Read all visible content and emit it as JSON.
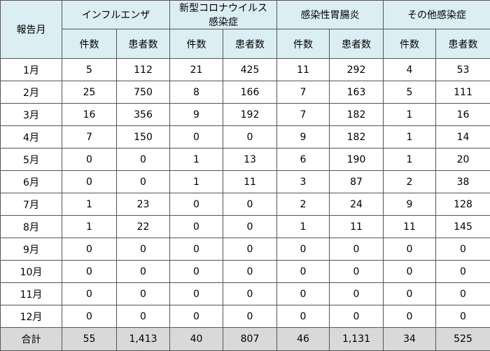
{
  "table": {
    "month_label": "報告月",
    "groups": [
      {
        "lines": [
          "インフルエンザ"
        ],
        "columns": [
          "件数",
          "患者数"
        ]
      },
      {
        "lines": [
          "新型コロナウイルス",
          "感染症"
        ],
        "columns": [
          "件数",
          "患者数"
        ]
      },
      {
        "lines": [
          "感染性胃腸炎"
        ],
        "columns": [
          "件数",
          "患者数"
        ]
      },
      {
        "lines": [
          "その他感染症"
        ],
        "columns": [
          "件数",
          "患者数"
        ]
      }
    ],
    "rows": [
      {
        "month": "1月",
        "cells": [
          "5",
          "112",
          "21",
          "425",
          "11",
          "292",
          "4",
          "53"
        ]
      },
      {
        "month": "2月",
        "cells": [
          "25",
          "750",
          "8",
          "166",
          "7",
          "163",
          "5",
          "111"
        ]
      },
      {
        "month": "3月",
        "cells": [
          "16",
          "356",
          "9",
          "192",
          "7",
          "182",
          "1",
          "16"
        ]
      },
      {
        "month": "4月",
        "cells": [
          "7",
          "150",
          "0",
          "0",
          "9",
          "182",
          "1",
          "14"
        ]
      },
      {
        "month": "5月",
        "cells": [
          "0",
          "0",
          "1",
          "13",
          "6",
          "190",
          "1",
          "20"
        ]
      },
      {
        "month": "6月",
        "cells": [
          "0",
          "0",
          "1",
          "11",
          "3",
          "87",
          "2",
          "38"
        ]
      },
      {
        "month": "7月",
        "cells": [
          "1",
          "23",
          "0",
          "0",
          "2",
          "24",
          "9",
          "128"
        ]
      },
      {
        "month": "8月",
        "cells": [
          "1",
          "22",
          "0",
          "0",
          "1",
          "11",
          "11",
          "145"
        ]
      },
      {
        "month": "9月",
        "cells": [
          "0",
          "0",
          "0",
          "0",
          "0",
          "0",
          "0",
          "0"
        ]
      },
      {
        "month": "10月",
        "cells": [
          "0",
          "0",
          "0",
          "0",
          "0",
          "0",
          "0",
          "0"
        ]
      },
      {
        "month": "11月",
        "cells": [
          "0",
          "0",
          "0",
          "0",
          "0",
          "0",
          "0",
          "0"
        ]
      },
      {
        "month": "12月",
        "cells": [
          "0",
          "0",
          "0",
          "0",
          "0",
          "0",
          "0",
          "0"
        ]
      }
    ],
    "total": {
      "label": "合計",
      "cells": [
        "55",
        "1,413",
        "40",
        "807",
        "46",
        "1,131",
        "34",
        "525"
      ]
    }
  }
}
